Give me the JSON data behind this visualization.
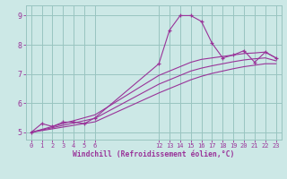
{
  "bg_color": "#cce8e6",
  "grid_color": "#99c4c0",
  "line_color": "#993399",
  "marker_color": "#993399",
  "xlabel": "Windchill (Refroidissement éolien,°C)",
  "xlabel_color": "#993399",
  "tick_color": "#993399",
  "ylabel_ticks": [
    5,
    6,
    7,
    8,
    9
  ],
  "xlabel_ticks": [
    0,
    1,
    2,
    3,
    4,
    5,
    6,
    12,
    13,
    14,
    15,
    16,
    17,
    18,
    19,
    20,
    21,
    22,
    23
  ],
  "series_with_markers": {
    "x": [
      0,
      1,
      2,
      3,
      4,
      5,
      6,
      12,
      13,
      14,
      15,
      16,
      17,
      18,
      19,
      20,
      21,
      22,
      23
    ],
    "y": [
      5.0,
      5.3,
      5.2,
      5.35,
      5.35,
      5.3,
      5.5,
      7.35,
      8.5,
      9.0,
      9.0,
      8.8,
      8.05,
      7.55,
      7.65,
      7.8,
      7.4,
      7.75,
      7.55
    ]
  },
  "series_smooth1": {
    "x": [
      0,
      1,
      2,
      3,
      4,
      5,
      6,
      12,
      13,
      14,
      15,
      16,
      17,
      18,
      19,
      20,
      21,
      22,
      23
    ],
    "y": [
      5.0,
      5.1,
      5.2,
      5.3,
      5.4,
      5.5,
      5.6,
      6.95,
      7.1,
      7.25,
      7.4,
      7.5,
      7.55,
      7.6,
      7.65,
      7.7,
      7.72,
      7.75,
      7.55
    ]
  },
  "series_smooth2": {
    "x": [
      0,
      1,
      2,
      3,
      4,
      5,
      6,
      12,
      13,
      14,
      15,
      16,
      17,
      18,
      19,
      20,
      21,
      22,
      23
    ],
    "y": [
      5.0,
      5.08,
      5.16,
      5.24,
      5.32,
      5.4,
      5.48,
      6.65,
      6.8,
      6.95,
      7.1,
      7.2,
      7.28,
      7.35,
      7.42,
      7.48,
      7.52,
      7.55,
      7.45
    ]
  },
  "series_smooth3": {
    "x": [
      0,
      1,
      2,
      3,
      4,
      5,
      6,
      12,
      13,
      14,
      15,
      16,
      17,
      18,
      19,
      20,
      21,
      22,
      23
    ],
    "y": [
      5.0,
      5.06,
      5.12,
      5.18,
      5.24,
      5.3,
      5.36,
      6.35,
      6.5,
      6.65,
      6.8,
      6.92,
      7.02,
      7.1,
      7.18,
      7.25,
      7.3,
      7.35,
      7.35
    ]
  },
  "ylim": [
    4.75,
    9.35
  ],
  "xlim": [
    -0.5,
    23.5
  ]
}
